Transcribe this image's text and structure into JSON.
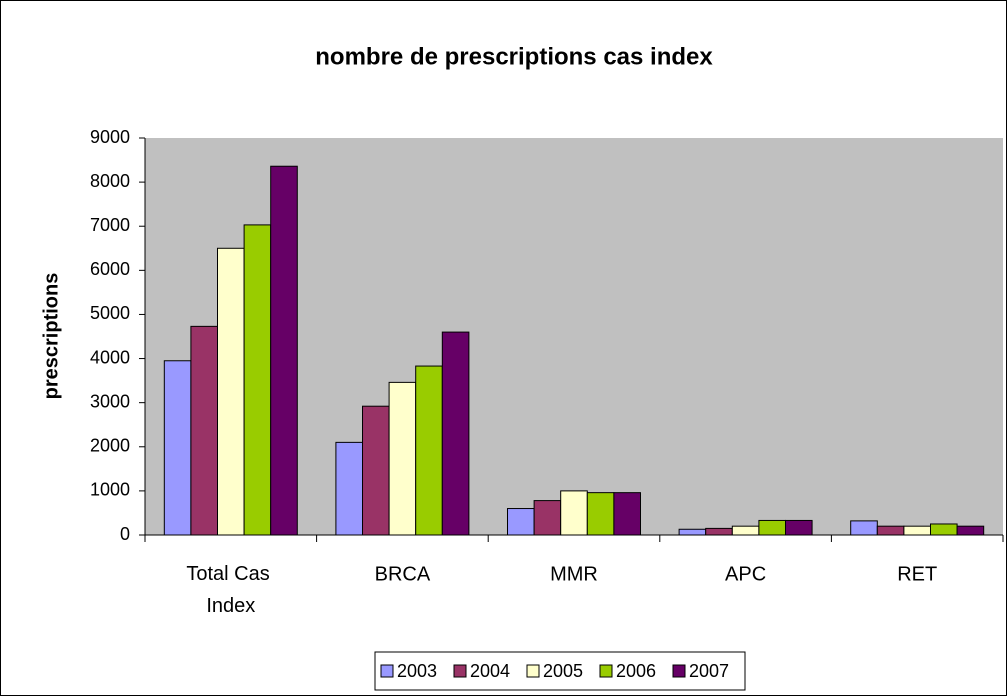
{
  "chart_data": {
    "type": "bar",
    "title": "nombre de prescriptions cas index",
    "y_label": "prescriptions",
    "categories": [
      "Total Cas Index",
      "BRCA",
      "MMR",
      "APC",
      "RET"
    ],
    "series": [
      {
        "name": "2003",
        "color": "#9999ff",
        "values": [
          3950,
          2100,
          600,
          130,
          320
        ]
      },
      {
        "name": "2004",
        "color": "#993366",
        "values": [
          4730,
          2920,
          780,
          150,
          200
        ]
      },
      {
        "name": "2005",
        "color": "#ffffcc",
        "values": [
          6500,
          3460,
          1000,
          200,
          200
        ]
      },
      {
        "name": "2006",
        "color": "#99cc00",
        "values": [
          7030,
          3830,
          960,
          330,
          250
        ]
      },
      {
        "name": "2007",
        "color": "#660066",
        "values": [
          8360,
          4600,
          960,
          330,
          200
        ]
      }
    ],
    "ylim": [
      0,
      9000
    ],
    "yticks": [
      0,
      1000,
      2000,
      3000,
      4000,
      5000,
      6000,
      7000,
      8000,
      9000
    ],
    "grid": false,
    "legend": "bottom"
  }
}
